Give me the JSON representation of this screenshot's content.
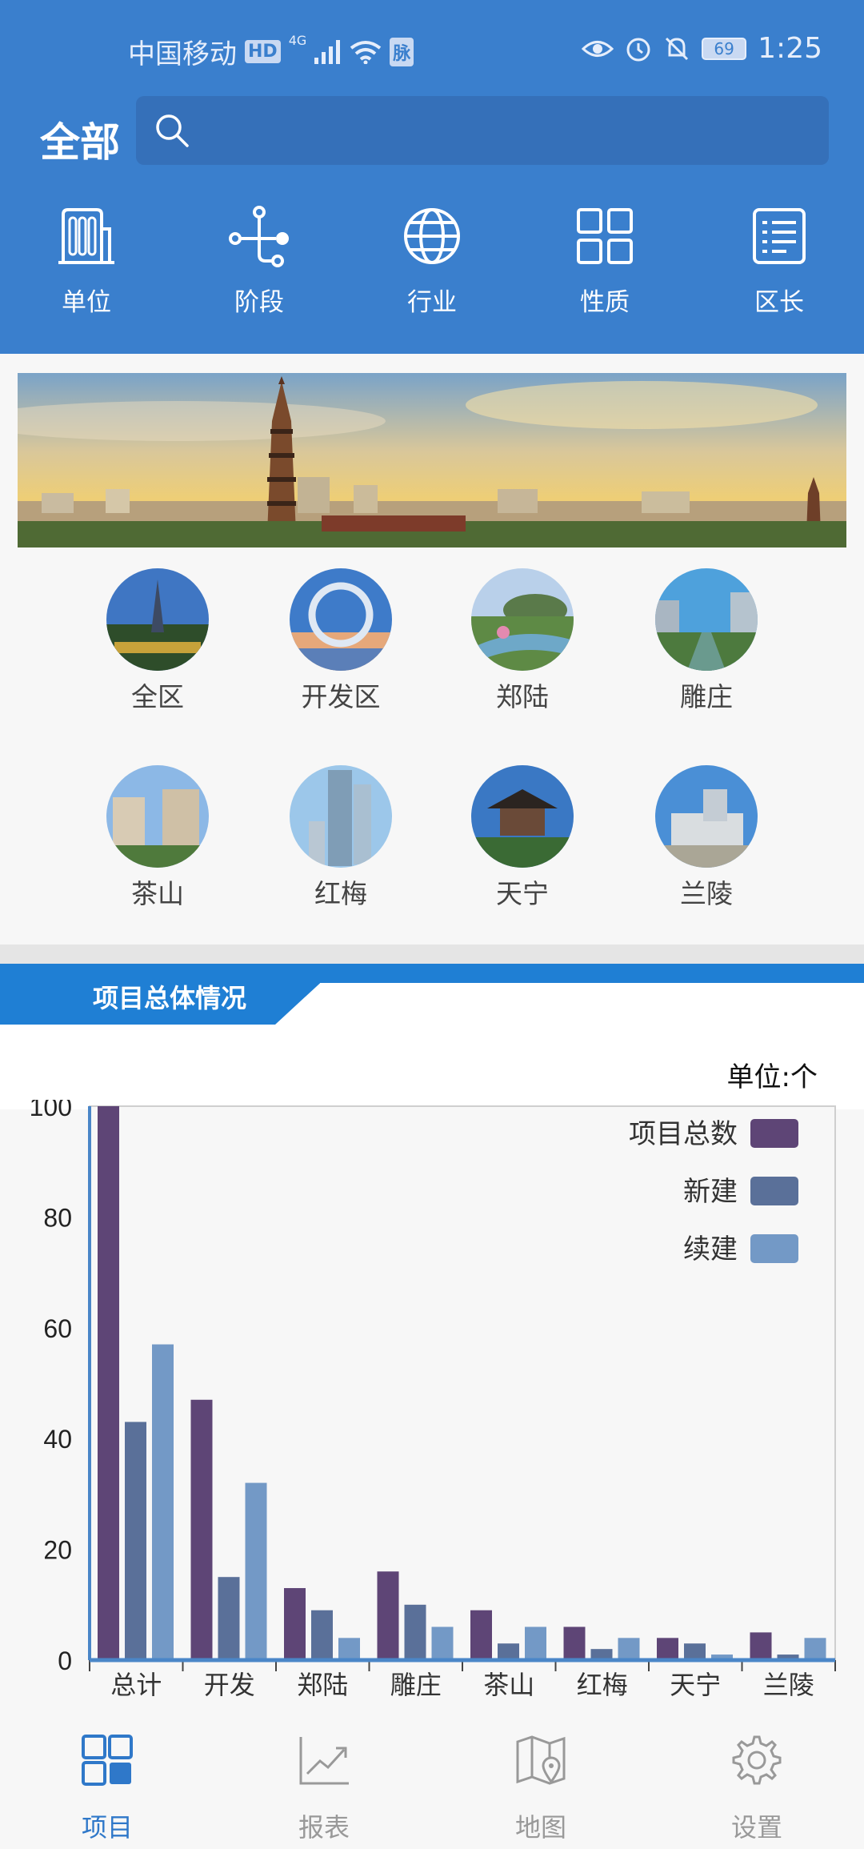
{
  "status_bar": {
    "carrier": "中国移动",
    "hd": "HD",
    "network": "4G",
    "extra_badge": "脉",
    "battery": "69",
    "time": "1:25"
  },
  "header": {
    "scope_label": "全部",
    "search_placeholder": ""
  },
  "categories": [
    {
      "label": "单位",
      "icon": "building-icon"
    },
    {
      "label": "阶段",
      "icon": "stage-flow-icon"
    },
    {
      "label": "行业",
      "icon": "globe-icon"
    },
    {
      "label": "性质",
      "icon": "grid-icon"
    },
    {
      "label": "区长",
      "icon": "list-doc-icon"
    }
  ],
  "districts": [
    {
      "label": "全区"
    },
    {
      "label": "开发区"
    },
    {
      "label": "郑陆"
    },
    {
      "label": "雕庄"
    },
    {
      "label": "茶山"
    },
    {
      "label": "红梅"
    },
    {
      "label": "天宁"
    },
    {
      "label": "兰陵"
    }
  ],
  "section": {
    "title": "项目总体情况",
    "unit": "单位:个"
  },
  "colors": {
    "primary": "#3a7fcd",
    "section_blue": "#1f7fd4",
    "series_total": "#5e4576",
    "series_new": "#5a7099",
    "series_continue": "#7399c6"
  },
  "chart_data": {
    "type": "bar",
    "categories": [
      "总计",
      "开发",
      "郑陆",
      "雕庄",
      "茶山",
      "红梅",
      "天宁",
      "兰陵"
    ],
    "series": [
      {
        "name": "项目总数",
        "values": [
          100,
          47,
          13,
          16,
          9,
          6,
          4,
          5
        ]
      },
      {
        "name": "新建",
        "values": [
          43,
          15,
          9,
          10,
          3,
          2,
          3,
          1
        ]
      },
      {
        "name": "续建",
        "values": [
          57,
          32,
          4,
          6,
          6,
          4,
          1,
          4
        ]
      }
    ],
    "ylim": [
      0,
      100
    ],
    "yticks": [
      0,
      20,
      40,
      60,
      80,
      100
    ],
    "legend": "top-right",
    "title": "",
    "xlabel": "",
    "ylabel": ""
  },
  "bottom_nav": [
    {
      "label": "项目",
      "icon": "project-grid-icon",
      "active": true
    },
    {
      "label": "报表",
      "icon": "chart-line-icon",
      "active": false
    },
    {
      "label": "地图",
      "icon": "map-icon",
      "active": false
    },
    {
      "label": "设置",
      "icon": "gear-icon",
      "active": false
    }
  ]
}
